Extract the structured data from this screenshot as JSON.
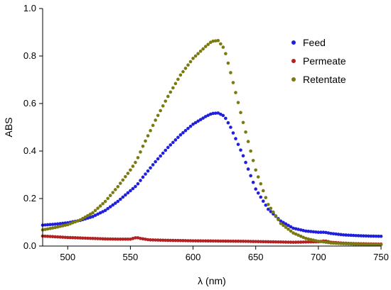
{
  "chart_data": {
    "type": "scatter",
    "title": "",
    "xlabel": "λ (nm)",
    "ylabel": "ABS",
    "xlim": [
      480,
      750
    ],
    "ylim": [
      0,
      1.0
    ],
    "x_ticks": [
      500,
      550,
      600,
      650,
      700,
      750
    ],
    "y_ticks": [
      0.0,
      0.2,
      0.4,
      0.6,
      0.8,
      1.0
    ],
    "x_tick_labels": [
      "500",
      "550",
      "600",
      "650",
      "700",
      "750"
    ],
    "y_tick_labels": [
      "0.0",
      "0.2",
      "0.4",
      "0.6",
      "0.8",
      "1.0"
    ],
    "grid": false,
    "legend_position": "top-right",
    "series": [
      {
        "name": "Feed",
        "color": "#1f1fdc",
        "points": [
          [
            480,
            0.088
          ],
          [
            490,
            0.092
          ],
          [
            500,
            0.098
          ],
          [
            510,
            0.108
          ],
          [
            520,
            0.124
          ],
          [
            530,
            0.15
          ],
          [
            540,
            0.188
          ],
          [
            550,
            0.233
          ],
          [
            555,
            0.255
          ],
          [
            560,
            0.29
          ],
          [
            570,
            0.355
          ],
          [
            580,
            0.415
          ],
          [
            590,
            0.468
          ],
          [
            600,
            0.513
          ],
          [
            610,
            0.545
          ],
          [
            615,
            0.558
          ],
          [
            620,
            0.56
          ],
          [
            625,
            0.547
          ],
          [
            630,
            0.5
          ],
          [
            640,
            0.38
          ],
          [
            650,
            0.24
          ],
          [
            660,
            0.155
          ],
          [
            670,
            0.105
          ],
          [
            680,
            0.075
          ],
          [
            690,
            0.063
          ],
          [
            700,
            0.058
          ],
          [
            705,
            0.058
          ],
          [
            710,
            0.053
          ],
          [
            720,
            0.047
          ],
          [
            730,
            0.044
          ],
          [
            740,
            0.042
          ],
          [
            750,
            0.041
          ]
        ]
      },
      {
        "name": "Permeate",
        "color": "#b22222",
        "points": [
          [
            480,
            0.042
          ],
          [
            490,
            0.039
          ],
          [
            500,
            0.036
          ],
          [
            510,
            0.034
          ],
          [
            520,
            0.032
          ],
          [
            530,
            0.03
          ],
          [
            540,
            0.029
          ],
          [
            550,
            0.029
          ],
          [
            555,
            0.036
          ],
          [
            558,
            0.032
          ],
          [
            565,
            0.026
          ],
          [
            580,
            0.024
          ],
          [
            600,
            0.022
          ],
          [
            620,
            0.021
          ],
          [
            640,
            0.02
          ],
          [
            660,
            0.018
          ],
          [
            680,
            0.016
          ],
          [
            700,
            0.018
          ],
          [
            705,
            0.022
          ],
          [
            710,
            0.016
          ],
          [
            720,
            0.012
          ],
          [
            730,
            0.01
          ],
          [
            740,
            0.009
          ],
          [
            750,
            0.008
          ]
        ]
      },
      {
        "name": "Retentate",
        "color": "#7a7a10",
        "points": [
          [
            480,
            0.068
          ],
          [
            490,
            0.078
          ],
          [
            500,
            0.09
          ],
          [
            510,
            0.11
          ],
          [
            520,
            0.14
          ],
          [
            530,
            0.188
          ],
          [
            540,
            0.25
          ],
          [
            550,
            0.32
          ],
          [
            555,
            0.36
          ],
          [
            560,
            0.42
          ],
          [
            570,
            0.53
          ],
          [
            580,
            0.63
          ],
          [
            590,
            0.72
          ],
          [
            600,
            0.79
          ],
          [
            610,
            0.84
          ],
          [
            615,
            0.862
          ],
          [
            620,
            0.865
          ],
          [
            625,
            0.83
          ],
          [
            630,
            0.73
          ],
          [
            640,
            0.52
          ],
          [
            650,
            0.32
          ],
          [
            660,
            0.175
          ],
          [
            670,
            0.095
          ],
          [
            680,
            0.055
          ],
          [
            690,
            0.032
          ],
          [
            700,
            0.02
          ],
          [
            705,
            0.017
          ],
          [
            710,
            0.013
          ],
          [
            720,
            0.01
          ],
          [
            730,
            0.008
          ],
          [
            740,
            0.007
          ],
          [
            750,
            0.006
          ]
        ]
      }
    ]
  }
}
